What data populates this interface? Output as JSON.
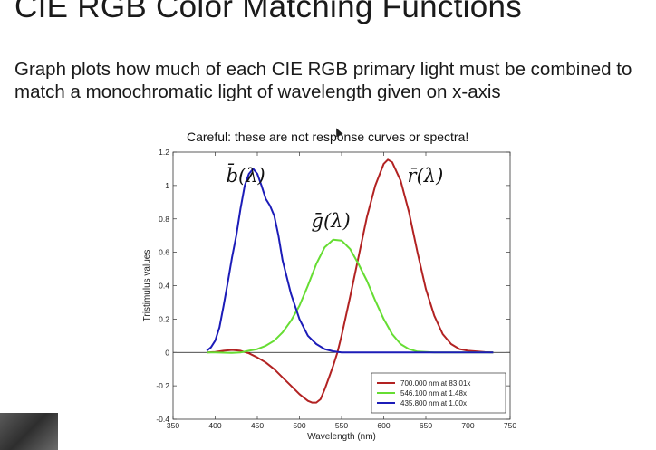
{
  "slide": {
    "title": "CIE RGB Color Matching Functions",
    "body": "Graph plots how much of each CIE RGB primary light must be combined to match a monochromatic light of wavelength given on x-axis",
    "chart_caption": "Careful: these are not response curves or spectra!"
  },
  "chart_data": {
    "type": "line",
    "title": "",
    "xlabel": "Wavelength (nm)",
    "ylabel": "Tristimulus values",
    "xlim": [
      350,
      750
    ],
    "ylim": [
      -0.4,
      1.2
    ],
    "xticks": [
      350,
      400,
      450,
      500,
      550,
      600,
      650,
      700,
      750
    ],
    "yticks": [
      -0.4,
      -0.2,
      0,
      0.2,
      0.4,
      0.6,
      0.8,
      1,
      1.2
    ],
    "xtick_labels": [
      "350",
      "400",
      "450",
      "500",
      "550",
      "600",
      "650",
      "700",
      "750"
    ],
    "ytick_labels": [
      "-0.4",
      "-0.2",
      "0",
      "0.2",
      "0.4",
      "0.6",
      "0.8",
      "1",
      "1.2"
    ],
    "grid": false,
    "legend_position": "bottom-right",
    "series": [
      {
        "name": "700.000 nm at 83.01x",
        "color": "#b22222",
        "label": "r̄(λ)",
        "points": [
          [
            390,
            0.0
          ],
          [
            400,
            0.003
          ],
          [
            410,
            0.01
          ],
          [
            420,
            0.015
          ],
          [
            430,
            0.01
          ],
          [
            440,
            -0.005
          ],
          [
            450,
            -0.03
          ],
          [
            460,
            -0.06
          ],
          [
            470,
            -0.1
          ],
          [
            480,
            -0.15
          ],
          [
            490,
            -0.2
          ],
          [
            500,
            -0.25
          ],
          [
            505,
            -0.27
          ],
          [
            510,
            -0.29
          ],
          [
            515,
            -0.3
          ],
          [
            520,
            -0.3
          ],
          [
            525,
            -0.28
          ],
          [
            530,
            -0.22
          ],
          [
            535,
            -0.15
          ],
          [
            540,
            -0.08
          ],
          [
            545,
            0.0
          ],
          [
            550,
            0.1
          ],
          [
            560,
            0.33
          ],
          [
            570,
            0.57
          ],
          [
            580,
            0.81
          ],
          [
            590,
            1.0
          ],
          [
            600,
            1.13
          ],
          [
            605,
            1.155
          ],
          [
            610,
            1.14
          ],
          [
            620,
            1.03
          ],
          [
            630,
            0.84
          ],
          [
            640,
            0.6
          ],
          [
            650,
            0.38
          ],
          [
            660,
            0.22
          ],
          [
            670,
            0.11
          ],
          [
            680,
            0.05
          ],
          [
            690,
            0.02
          ],
          [
            700,
            0.01
          ],
          [
            720,
            0.002
          ],
          [
            730,
            0.0
          ]
        ]
      },
      {
        "name": "546.100 nm at 1.48x",
        "color": "#66dd33",
        "label": "ḡ(λ)",
        "points": [
          [
            390,
            0.0
          ],
          [
            400,
            0.0
          ],
          [
            420,
            -0.003
          ],
          [
            430,
            0.0
          ],
          [
            440,
            0.01
          ],
          [
            450,
            0.02
          ],
          [
            460,
            0.04
          ],
          [
            470,
            0.07
          ],
          [
            480,
            0.12
          ],
          [
            490,
            0.19
          ],
          [
            500,
            0.28
          ],
          [
            510,
            0.4
          ],
          [
            520,
            0.53
          ],
          [
            530,
            0.63
          ],
          [
            540,
            0.675
          ],
          [
            550,
            0.67
          ],
          [
            560,
            0.62
          ],
          [
            570,
            0.53
          ],
          [
            580,
            0.43
          ],
          [
            590,
            0.31
          ],
          [
            600,
            0.2
          ],
          [
            610,
            0.11
          ],
          [
            620,
            0.05
          ],
          [
            630,
            0.02
          ],
          [
            640,
            0.005
          ],
          [
            660,
            0.0
          ],
          [
            700,
            0.0
          ],
          [
            730,
            0.0
          ]
        ]
      },
      {
        "name": "435.800 nm at 1.00x",
        "color": "#1c1cb8",
        "label": "b̄(λ)",
        "points": [
          [
            390,
            0.01
          ],
          [
            395,
            0.03
          ],
          [
            400,
            0.07
          ],
          [
            405,
            0.15
          ],
          [
            410,
            0.28
          ],
          [
            415,
            0.42
          ],
          [
            420,
            0.57
          ],
          [
            425,
            0.7
          ],
          [
            430,
            0.86
          ],
          [
            435,
            1.0
          ],
          [
            440,
            1.07
          ],
          [
            445,
            1.1
          ],
          [
            450,
            1.07
          ],
          [
            455,
            1.0
          ],
          [
            460,
            0.92
          ],
          [
            465,
            0.88
          ],
          [
            470,
            0.82
          ],
          [
            475,
            0.7
          ],
          [
            480,
            0.55
          ],
          [
            490,
            0.35
          ],
          [
            500,
            0.2
          ],
          [
            510,
            0.1
          ],
          [
            520,
            0.05
          ],
          [
            530,
            0.02
          ],
          [
            540,
            0.007
          ],
          [
            550,
            0.0
          ],
          [
            600,
            0.0
          ],
          [
            700,
            0.0
          ],
          [
            730,
            0.0
          ]
        ]
      }
    ]
  }
}
